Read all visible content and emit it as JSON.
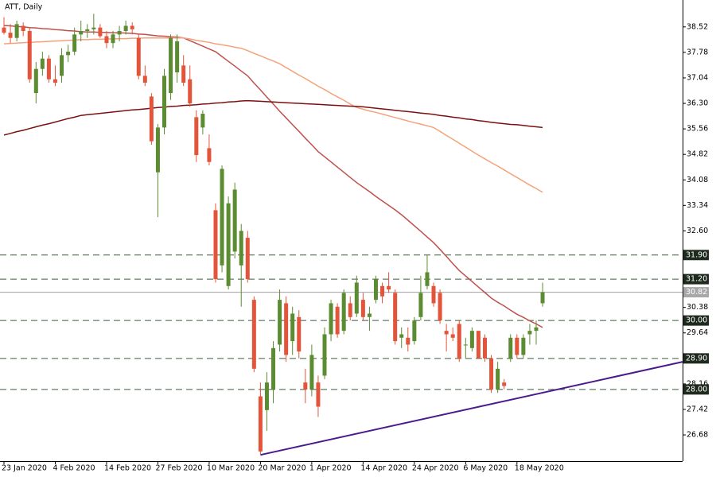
{
  "chart_data": {
    "type": "candlestick",
    "title": "ATT, Daily",
    "categories": [
      "23 Jan 2020",
      null,
      null,
      null,
      null,
      null,
      null,
      null,
      "4 Feb 2020",
      null,
      null,
      null,
      null,
      null,
      null,
      null,
      "14 Feb 2020",
      null,
      null,
      null,
      null,
      null,
      null,
      null,
      "27 Feb 2020",
      null,
      null,
      null,
      null,
      null,
      null,
      null,
      "10 Mar 2020",
      null,
      null,
      null,
      null,
      null,
      null,
      null,
      "20 Mar 2020",
      null,
      null,
      null,
      null,
      null,
      null,
      null,
      "1 Apr 2020",
      null,
      null,
      null,
      null,
      null,
      null,
      null,
      "14 Apr 2020",
      null,
      null,
      null,
      null,
      null,
      null,
      null,
      "24 Apr 2020",
      null,
      null,
      null,
      null,
      null,
      null,
      null,
      "6 May 2020",
      null,
      null,
      null,
      null,
      null,
      null,
      null,
      "18 May 2020",
      null,
      null,
      null,
      null
    ],
    "open": [
      38.5,
      38.35,
      38.2,
      38.55,
      38.4,
      36.6,
      37.3,
      37.6,
      37.0,
      37.1,
      37.7,
      37.8,
      38.3,
      38.4,
      38.45,
      38.5,
      38.25,
      38.05,
      38.3,
      38.4,
      38.55,
      38.2,
      37.1,
      36.5,
      34.3,
      35.6,
      36.6,
      37.2,
      37.4,
      37.0,
      35.9,
      35.6,
      35.0,
      33.2,
      31.6,
      31.0,
      32.0,
      31.6,
      32.4,
      30.6,
      27.8,
      27.4,
      28.0,
      29.3,
      30.5,
      29.4,
      30.1,
      28.2,
      28.0,
      28.2,
      28.4,
      29.6,
      30.4,
      29.7,
      30.5,
      30.2,
      30.6,
      30.1,
      30.6,
      31.0,
      31.0,
      30.8,
      29.5,
      29.5,
      29.4,
      30.1,
      31.0,
      31.0,
      30.8,
      29.7,
      29.6,
      29.9,
      29.3,
      29.2,
      29.7,
      29.5,
      28.9,
      28.0,
      28.2,
      28.9,
      29.5,
      29.0,
      29.6,
      29.7,
      30.5
    ],
    "high": [
      38.8,
      38.6,
      38.7,
      38.65,
      38.5,
      37.5,
      37.8,
      37.7,
      37.4,
      37.9,
      38.0,
      38.5,
      38.7,
      38.6,
      38.9,
      38.6,
      38.4,
      38.4,
      38.55,
      38.7,
      38.65,
      38.3,
      37.4,
      36.6,
      35.7,
      37.3,
      38.3,
      38.3,
      37.7,
      37.4,
      36.1,
      36.1,
      35.4,
      33.4,
      34.5,
      33.6,
      34.0,
      32.8,
      32.6,
      30.7,
      28.2,
      28.5,
      29.4,
      30.9,
      30.7,
      30.4,
      30.3,
      28.6,
      29.3,
      28.4,
      29.8,
      30.6,
      30.5,
      30.9,
      30.7,
      31.3,
      30.8,
      30.4,
      31.3,
      31.1,
      31.4,
      30.9,
      29.8,
      29.8,
      30.1,
      31.3,
      31.9,
      31.1,
      30.9,
      29.9,
      29.8,
      30.0,
      29.5,
      29.8,
      29.7,
      29.6,
      29.0,
      28.8,
      28.3,
      29.6,
      29.6,
      29.6,
      29.9,
      30.0,
      31.1
    ],
    "low": [
      38.3,
      38.05,
      38.1,
      38.25,
      36.9,
      36.3,
      37.1,
      36.9,
      36.8,
      36.9,
      37.5,
      37.7,
      38.1,
      38.2,
      38.3,
      38.2,
      37.9,
      37.9,
      38.1,
      38.3,
      38.3,
      37.0,
      36.8,
      35.1,
      33.0,
      35.4,
      36.4,
      36.9,
      36.8,
      36.2,
      34.6,
      35.4,
      34.5,
      31.1,
      31.4,
      30.9,
      31.8,
      30.4,
      31.1,
      28.5,
      26.1,
      26.8,
      27.6,
      29.1,
      28.8,
      29.0,
      28.9,
      27.6,
      27.8,
      27.2,
      28.3,
      29.4,
      29.5,
      29.6,
      30.0,
      30.1,
      30.0,
      29.7,
      30.5,
      30.5,
      30.8,
      29.3,
      29.2,
      29.1,
      29.3,
      30.0,
      30.9,
      30.4,
      29.9,
      29.1,
      29.4,
      28.8,
      28.9,
      29.1,
      28.9,
      28.8,
      27.9,
      27.9,
      28.0,
      28.8,
      28.9,
      28.9,
      29.3,
      29.3,
      30.4
    ],
    "close": [
      38.35,
      38.2,
      38.6,
      38.4,
      37.0,
      37.3,
      37.6,
      37.0,
      36.9,
      37.7,
      37.8,
      38.3,
      38.4,
      38.45,
      38.5,
      38.25,
      38.05,
      38.3,
      38.4,
      38.55,
      38.45,
      37.1,
      36.9,
      35.2,
      35.6,
      37.1,
      38.2,
      38.1,
      36.9,
      36.3,
      34.8,
      36.0,
      34.6,
      31.2,
      34.4,
      33.4,
      33.8,
      32.6,
      31.2,
      28.6,
      26.2,
      28.2,
      29.2,
      30.6,
      29.0,
      30.2,
      29.1,
      28.0,
      29.0,
      27.5,
      29.6,
      30.5,
      29.6,
      30.8,
      30.1,
      31.1,
      30.1,
      30.2,
      31.2,
      30.7,
      30.9,
      29.4,
      29.6,
      29.3,
      30.0,
      30.8,
      31.4,
      30.5,
      30.0,
      29.6,
      29.5,
      28.9,
      29.3,
      29.7,
      28.9,
      28.9,
      28.0,
      28.6,
      28.1,
      29.5,
      29.0,
      29.5,
      29.7,
      29.8,
      30.82
    ],
    "up_color": "#5b8c32",
    "down_color": "#e4543a",
    "lines": [
      {
        "color": "#c0504d",
        "values": [
          38.56,
          38.55,
          38.53,
          38.52,
          38.5,
          38.49,
          38.47,
          38.46,
          38.44,
          38.43,
          38.41,
          38.4,
          38.38,
          38.37,
          38.37,
          38.36,
          38.36,
          38.35,
          38.35,
          38.34,
          38.33,
          38.31,
          38.3,
          38.28,
          38.26,
          38.25,
          38.23,
          38.22,
          38.2,
          38.12,
          38.04,
          37.96,
          37.88,
          37.8,
          37.66,
          37.52,
          37.38,
          37.24,
          37.1,
          36.89,
          36.69,
          36.48,
          36.28,
          36.07,
          35.88,
          35.68,
          35.49,
          35.29,
          35.1,
          34.9,
          34.75,
          34.6,
          34.45,
          34.3,
          34.15,
          34.0,
          33.87,
          33.74,
          33.6,
          33.47,
          33.34,
          33.21,
          33.07,
          32.91,
          32.75,
          32.59,
          32.42,
          32.26,
          32.06,
          31.86,
          31.65,
          31.45,
          31.29,
          31.13,
          30.97,
          30.81,
          30.65,
          30.53,
          30.42,
          30.3,
          30.18,
          30.09,
          29.99,
          29.9,
          29.8
        ]
      },
      {
        "color": "#f5a27a",
        "values": [
          38.03,
          38.04,
          38.05,
          38.06,
          38.07,
          38.08,
          38.09,
          38.1,
          38.11,
          38.12,
          38.13,
          38.14,
          38.15,
          38.15,
          38.16,
          38.16,
          38.17,
          38.17,
          38.18,
          38.18,
          38.19,
          38.19,
          38.2,
          38.2,
          38.2,
          38.2,
          38.2,
          38.2,
          38.2,
          38.17,
          38.13,
          38.1,
          38.07,
          38.03,
          38.0,
          37.97,
          37.93,
          37.9,
          37.83,
          37.75,
          37.68,
          37.6,
          37.53,
          37.45,
          37.34,
          37.23,
          37.12,
          37.02,
          36.91,
          36.8,
          36.7,
          36.59,
          36.49,
          36.39,
          36.28,
          36.18,
          36.13,
          36.08,
          36.04,
          35.99,
          35.94,
          35.89,
          35.84,
          35.79,
          35.74,
          35.7,
          35.65,
          35.6,
          35.49,
          35.37,
          35.26,
          35.14,
          35.03,
          34.91,
          34.8,
          34.69,
          34.58,
          34.48,
          34.37,
          34.26,
          34.15,
          34.04,
          33.93,
          33.83,
          33.72
        ]
      },
      {
        "color": "#7b1010",
        "values": [
          35.38,
          35.43,
          35.48,
          35.52,
          35.57,
          35.62,
          35.67,
          35.71,
          35.76,
          35.81,
          35.86,
          35.9,
          35.95,
          35.97,
          35.99,
          36.01,
          36.03,
          36.05,
          36.07,
          36.09,
          36.11,
          36.12,
          36.14,
          36.16,
          36.18,
          36.19,
          36.21,
          36.22,
          36.24,
          36.25,
          36.26,
          36.28,
          36.29,
          36.31,
          36.32,
          36.34,
          36.35,
          36.37,
          36.38,
          36.37,
          36.36,
          36.35,
          36.34,
          36.33,
          36.32,
          36.31,
          36.3,
          36.29,
          36.28,
          36.27,
          36.26,
          36.25,
          36.24,
          36.23,
          36.22,
          36.21,
          36.2,
          36.18,
          36.16,
          36.14,
          36.12,
          36.1,
          36.08,
          36.06,
          36.04,
          36.02,
          36.0,
          35.98,
          35.95,
          35.93,
          35.9,
          35.88,
          35.85,
          35.83,
          35.8,
          35.78,
          35.75,
          35.73,
          35.71,
          35.69,
          35.68,
          35.66,
          35.64,
          35.62,
          35.6
        ]
      }
    ],
    "trendline": {
      "color": "#4b1a8c",
      "start": [
        40,
        26.1
      ],
      "end": [
        106,
        28.8
      ]
    },
    "levels": [
      {
        "value": 31.9,
        "label": "31.90"
      },
      {
        "value": 31.2,
        "label": "31.20"
      },
      {
        "value": 30,
        "label": "30.00"
      },
      {
        "value": 28.9,
        "label": "28.90"
      },
      {
        "value": 28,
        "label": "28.00"
      }
    ],
    "level_color": "#3d5c3d",
    "price": 30.82,
    "ylim": [
      25.92,
      39.3
    ],
    "yticks": [
      38.52,
      37.78,
      37.04,
      {
        "value": 36.3,
        "label": "36.30"
      },
      35.56,
      34.82,
      34.08,
      33.34,
      {
        "value": 32.6,
        "label": "32.60"
      },
      30.38,
      29.64,
      28.16,
      27.42,
      26.68
    ]
  }
}
